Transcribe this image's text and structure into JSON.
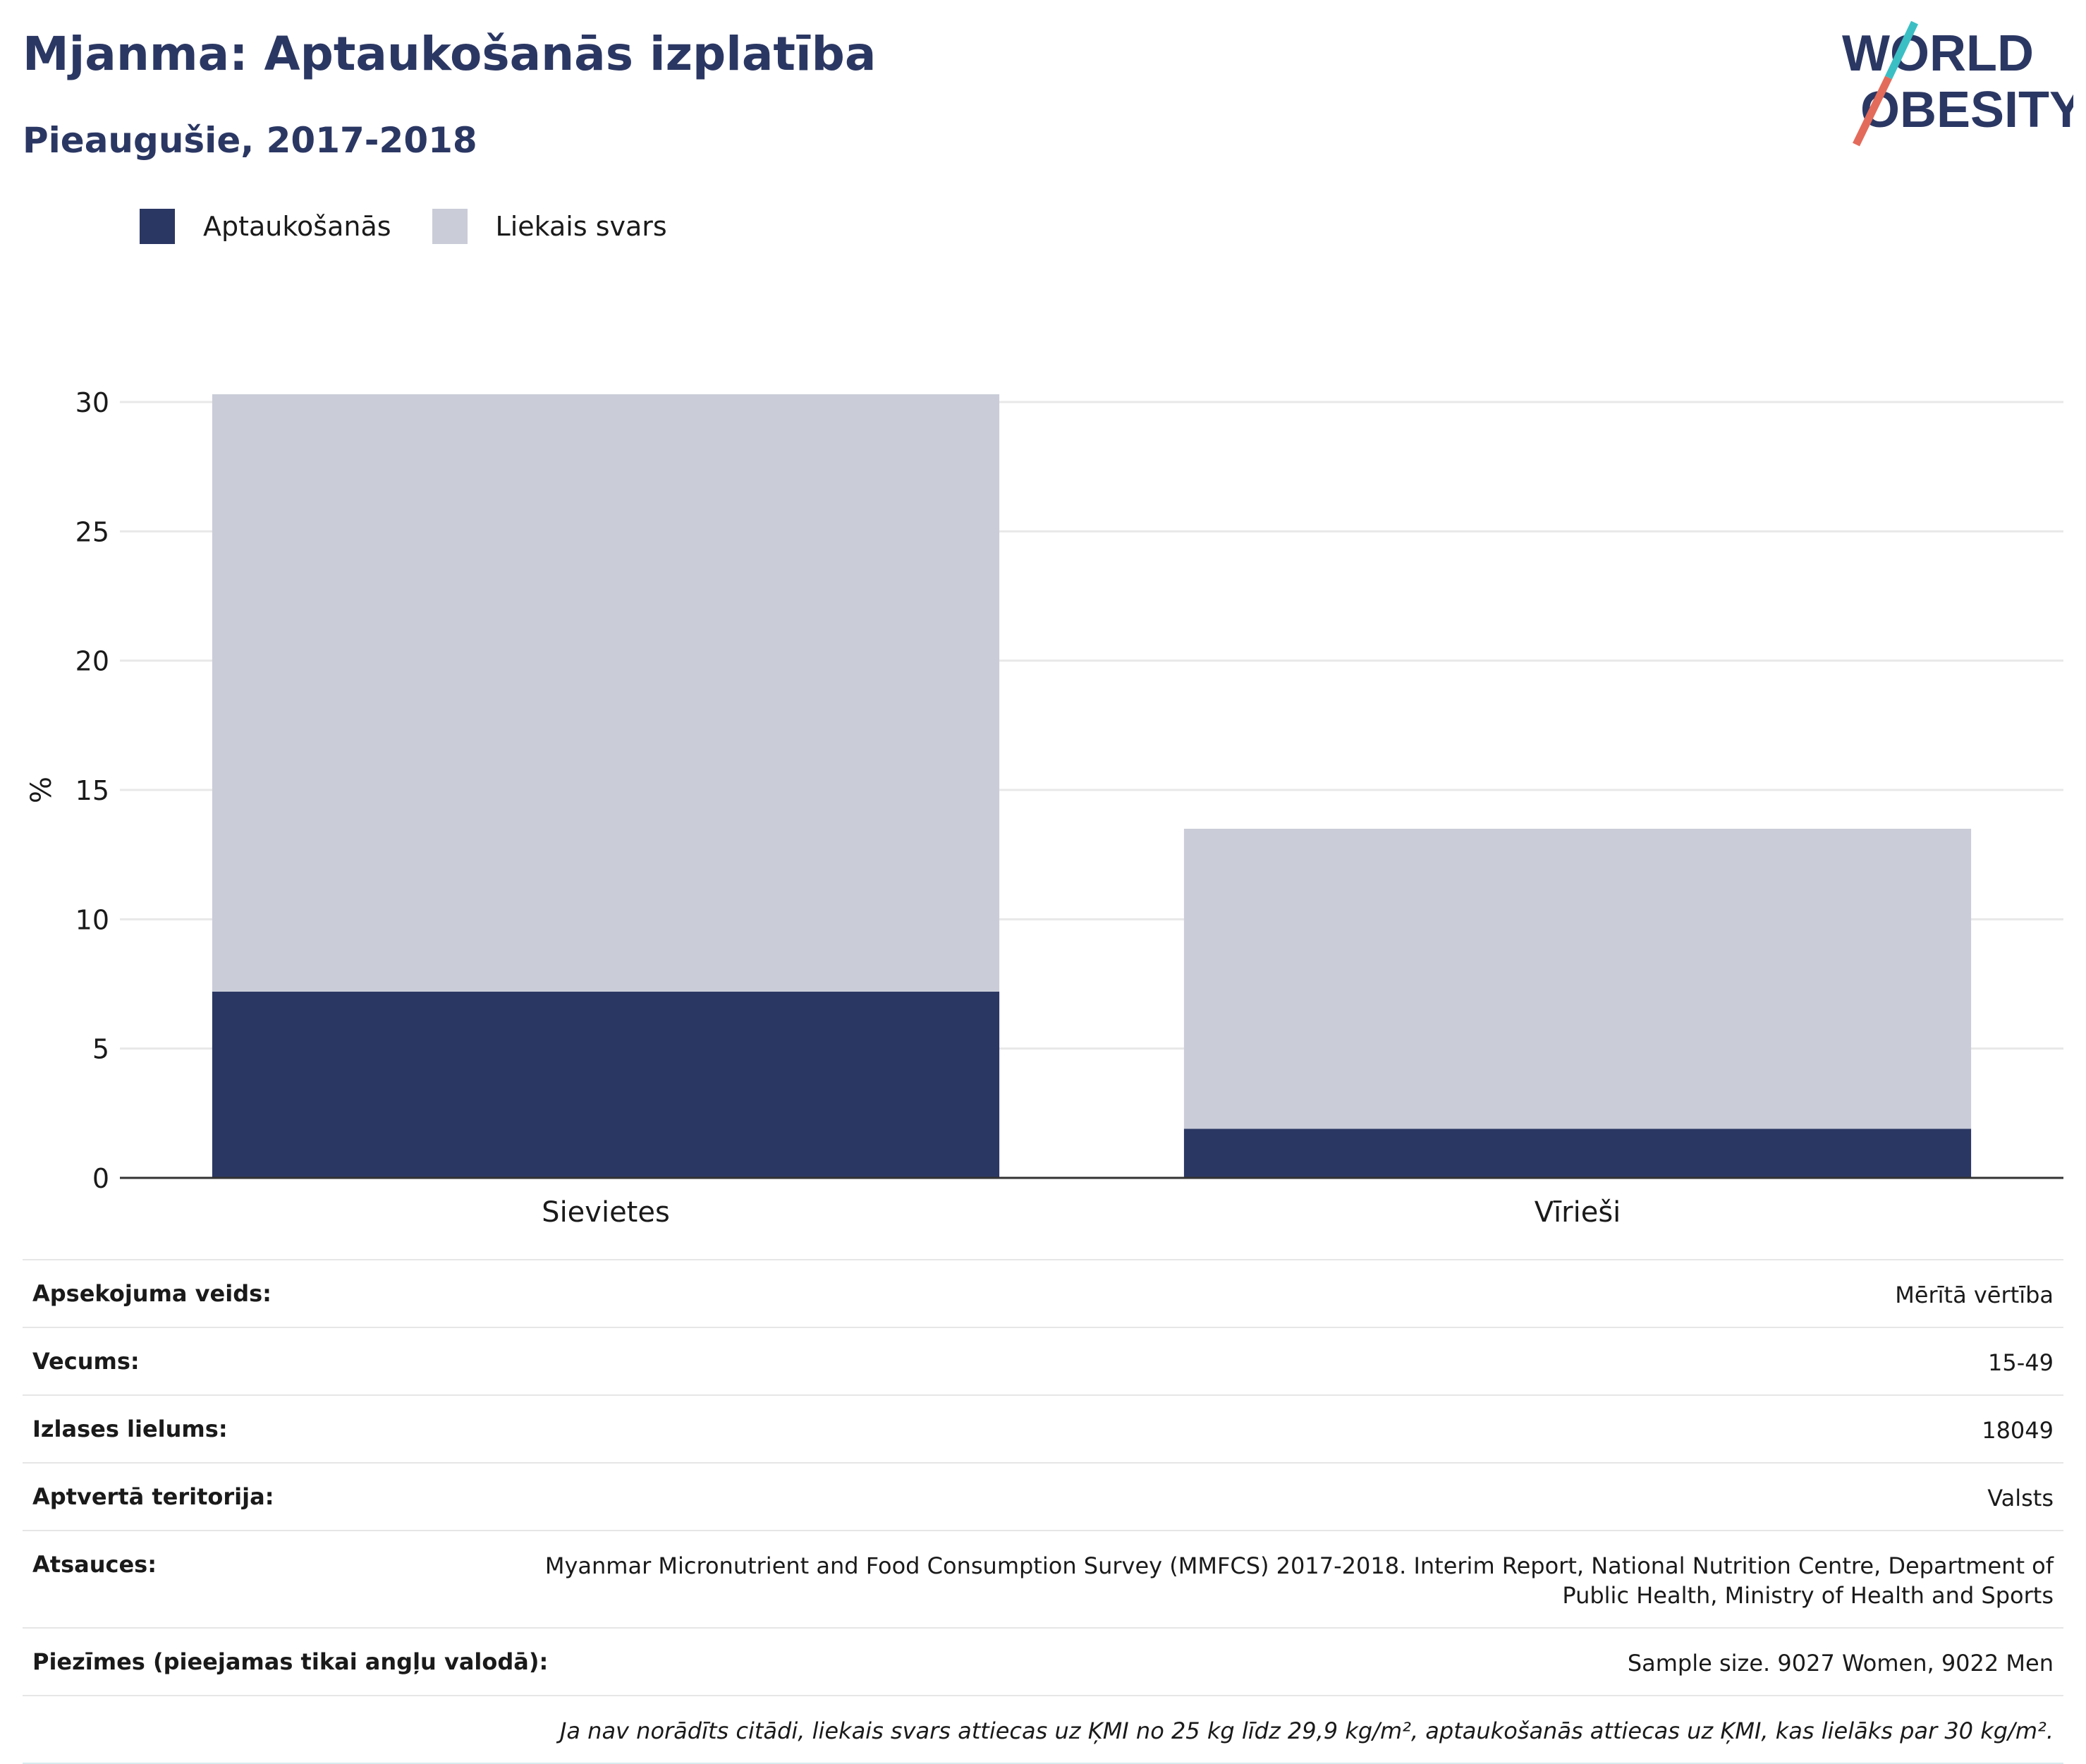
{
  "header": {
    "title": "Mjanma: Aptaukošanās izplatība",
    "subtitle": "Pieaugušie, 2017-2018"
  },
  "logo": {
    "line1": "WORLD",
    "line2": "OBESITY"
  },
  "colors": {
    "obesity": "#2b3763",
    "overweight": "#cacdd8",
    "text": "#2b3763",
    "accent_teal": "#3bbfc4",
    "accent_red": "#e36b5b"
  },
  "chart_data": {
    "type": "bar",
    "stacked": true,
    "categories": [
      "Sievietes",
      "Vīrieši"
    ],
    "series": [
      {
        "name": "Aptaukošanās",
        "values": [
          7.2,
          1.9
        ],
        "color": "#2b3763"
      },
      {
        "name": "Liekais svars",
        "values": [
          23.1,
          11.6
        ],
        "color": "#cacdd8"
      }
    ],
    "ylabel": "%",
    "ylim": [
      0,
      30
    ],
    "yticks": [
      0,
      5,
      10,
      15,
      20,
      25,
      30
    ],
    "grid": true,
    "legend_position": "top-left"
  },
  "metadata": {
    "rows": [
      {
        "key": "Apsekojuma veids:",
        "value": "Mērītā vērtība"
      },
      {
        "key": "Vecums:",
        "value": "15-49"
      },
      {
        "key": "Izlases lielums:",
        "value": "18049"
      },
      {
        "key": "Aptvertā teritorija:",
        "value": "Valsts"
      },
      {
        "key": "Atsauces:",
        "value": "Myanmar Micronutrient and Food Consumption Survey (MMFCS) 2017-2018. Interim Report, National Nutrition Centre, Department of Public Health, Ministry of Health and Sports"
      },
      {
        "key": "Piezīmes (pieejamas tikai angļu valodā):",
        "value": "Sample size. 9027 Women, 9022 Men"
      }
    ],
    "footnote": "Ja nav norādīts citādi, liekais svars attiecas uz ĶMI no 25 kg līdz 29,9 kg/m², aptaukošanās attiecas uz ĶMI, kas lielāks par 30 kg/m²."
  }
}
